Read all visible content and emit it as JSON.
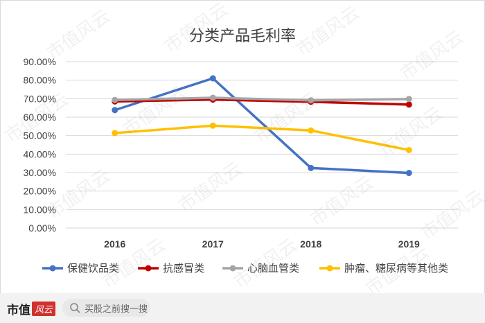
{
  "chart_data": {
    "type": "line",
    "title": "分类产品毛利率",
    "categories": [
      "2016",
      "2017",
      "2018",
      "2019"
    ],
    "y_ticks": [
      "0.00%",
      "10.00%",
      "20.00%",
      "30.00%",
      "40.00%",
      "50.00%",
      "60.00%",
      "70.00%",
      "80.00%",
      "90.00%"
    ],
    "ylim": [
      0,
      90
    ],
    "grid": true,
    "legend_position": "bottom",
    "series": [
      {
        "name": "保健饮品类",
        "color": "#4472c4",
        "values": [
          63.8,
          81.0,
          32.5,
          29.8
        ]
      },
      {
        "name": "抗感冒类",
        "color": "#c00000",
        "values": [
          68.5,
          69.5,
          68.3,
          66.8
        ]
      },
      {
        "name": "心脑血管类",
        "color": "#a5a5a5",
        "values": [
          69.3,
          70.5,
          69.1,
          69.8
        ]
      },
      {
        "name": "肿瘤、糖尿病等其他类",
        "color": "#ffc000",
        "values": [
          51.4,
          55.4,
          52.8,
          42.2
        ]
      }
    ]
  },
  "watermark_text": "市值风云",
  "footer": {
    "brand_text": "市值",
    "brand_badge": "风云",
    "search_placeholder": "买股之前搜一搜",
    "search_icon": "search-icon"
  }
}
